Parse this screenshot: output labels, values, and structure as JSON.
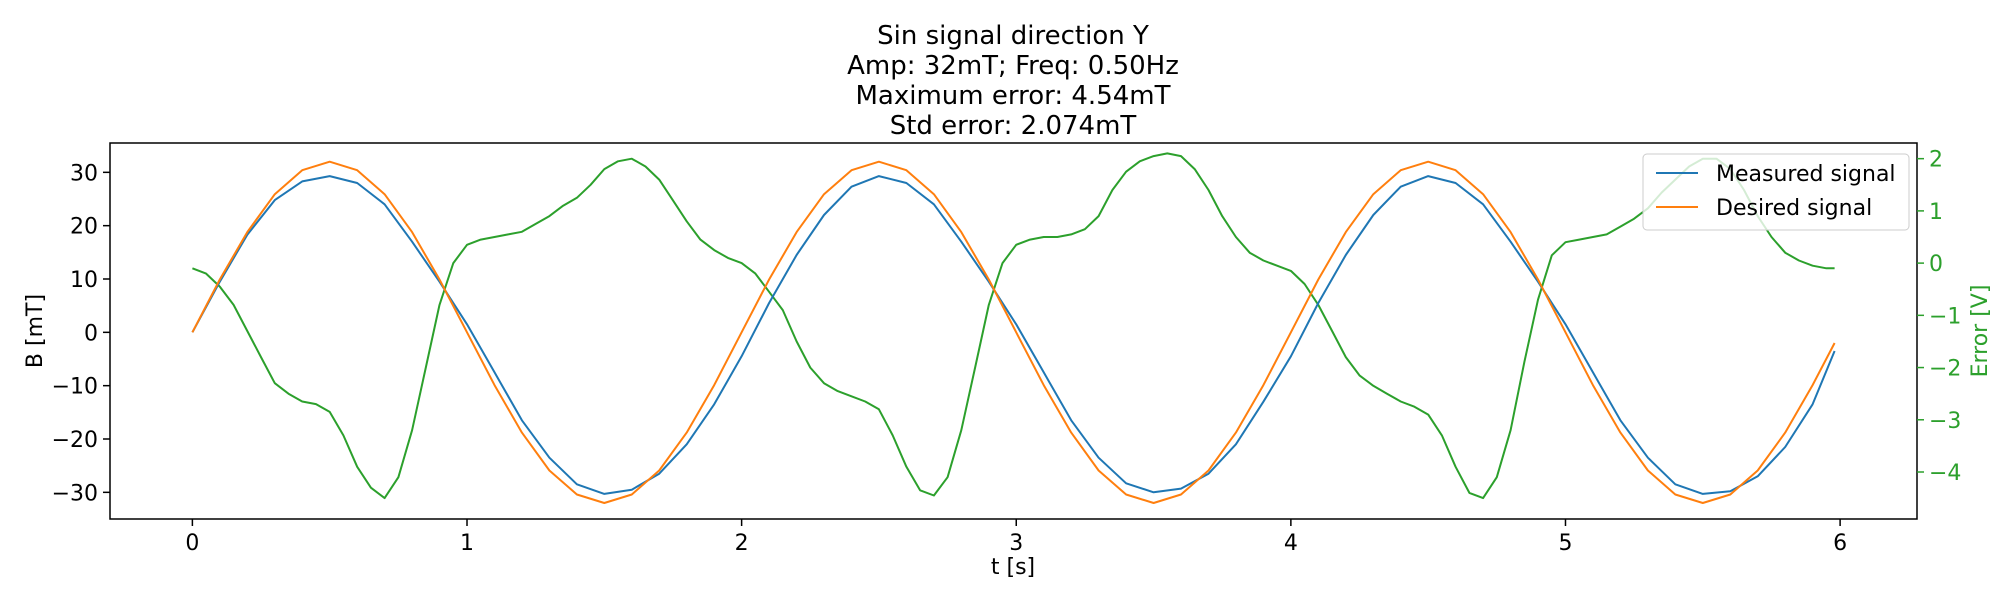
{
  "chart_data": {
    "type": "line",
    "title_lines": [
      "Sin signal direction Y",
      "Amp: 32mT; Freq: 0.50Hz",
      "Maximum error: 4.54mT",
      "Std error: 2.074mT"
    ],
    "xlabel": "t [s]",
    "ylabel": "B [mT]",
    "y2label": "Error [V]",
    "xlim": [
      -0.3,
      6.28
    ],
    "ylim": [
      -35,
      35.5
    ],
    "y2lim": [
      -4.9,
      2.3
    ],
    "xticks": [
      0,
      1,
      2,
      3,
      4,
      5,
      6
    ],
    "xtick_labels": [
      "0",
      "1",
      "2",
      "3",
      "4",
      "5",
      "6"
    ],
    "yticks": [
      30,
      20,
      10,
      0,
      -10,
      -20,
      -30
    ],
    "ytick_labels": [
      "30",
      "20",
      "10",
      "0",
      "−10",
      "−20",
      "−30"
    ],
    "y2ticks": [
      2,
      1,
      0,
      -1,
      -2,
      -3,
      -4
    ],
    "y2tick_labels": [
      "2",
      "1",
      "0",
      "−1",
      "−2",
      "−3",
      "−4"
    ],
    "grid": false,
    "legend_position": "top-right",
    "colors": {
      "measured": "#1f77b4",
      "desired": "#ff7f0e",
      "error": "#2ca02c"
    },
    "series": [
      {
        "name": "Measured signal",
        "axis": "left",
        "color": "#1f77b4",
        "x": [
          0,
          0.1,
          0.2,
          0.3,
          0.4,
          0.5,
          0.6,
          0.7,
          0.8,
          0.9,
          1.0,
          1.1,
          1.2,
          1.3,
          1.4,
          1.5,
          1.6,
          1.7,
          1.8,
          1.9,
          2.0,
          2.1,
          2.2,
          2.3,
          2.4,
          2.5,
          2.6,
          2.7,
          2.8,
          2.9,
          3.0,
          3.1,
          3.2,
          3.3,
          3.4,
          3.5,
          3.6,
          3.7,
          3.8,
          3.9,
          4.0,
          4.1,
          4.2,
          4.3,
          4.4,
          4.5,
          4.6,
          4.7,
          4.8,
          4.9,
          5.0,
          5.1,
          5.2,
          5.3,
          5.4,
          5.5,
          5.6,
          5.7,
          5.8,
          5.9,
          5.98
        ],
        "y": [
          0,
          9.5,
          18.3,
          24.8,
          28.3,
          29.3,
          28.0,
          24.0,
          17.0,
          9.5,
          1.5,
          -7.5,
          -16.5,
          -23.5,
          -28.5,
          -30.3,
          -29.5,
          -26.5,
          -21.0,
          -13.5,
          -4.5,
          5.5,
          14.5,
          22.0,
          27.3,
          29.3,
          28.0,
          24.0,
          17.0,
          9.5,
          1.5,
          -7.5,
          -16.5,
          -23.5,
          -28.3,
          -30.0,
          -29.3,
          -26.5,
          -21.0,
          -13.0,
          -4.5,
          5.5,
          14.5,
          22.0,
          27.3,
          29.3,
          28.0,
          24.0,
          17.0,
          9.5,
          1.5,
          -7.5,
          -16.5,
          -23.5,
          -28.5,
          -30.3,
          -29.8,
          -27.0,
          -21.5,
          -13.5,
          -3.5
        ]
      },
      {
        "name": "Desired signal",
        "axis": "left",
        "color": "#ff7f0e",
        "amplitude": 32,
        "frequency_hz": 0.5,
        "x": [
          0,
          0.1,
          0.2,
          0.3,
          0.4,
          0.5,
          0.6,
          0.7,
          0.8,
          0.9,
          1.0,
          1.1,
          1.2,
          1.3,
          1.4,
          1.5,
          1.6,
          1.7,
          1.8,
          1.9,
          2.0,
          2.1,
          2.2,
          2.3,
          2.4,
          2.5,
          2.6,
          2.7,
          2.8,
          2.9,
          3.0,
          3.1,
          3.2,
          3.3,
          3.4,
          3.5,
          3.6,
          3.7,
          3.8,
          3.9,
          4.0,
          4.1,
          4.2,
          4.3,
          4.4,
          4.5,
          4.6,
          4.7,
          4.8,
          4.9,
          5.0,
          5.1,
          5.2,
          5.3,
          5.4,
          5.5,
          5.6,
          5.7,
          5.8,
          5.9,
          5.98
        ],
        "y": [
          0,
          9.9,
          18.8,
          25.9,
          30.4,
          32.0,
          30.4,
          25.9,
          18.8,
          9.9,
          0,
          -9.9,
          -18.8,
          -25.9,
          -30.4,
          -32.0,
          -30.4,
          -25.9,
          -18.8,
          -9.9,
          0,
          9.9,
          18.8,
          25.9,
          30.4,
          32.0,
          30.4,
          25.9,
          18.8,
          9.9,
          0,
          -9.9,
          -18.8,
          -25.9,
          -30.4,
          -32.0,
          -30.4,
          -25.9,
          -18.8,
          -9.9,
          0,
          9.9,
          18.8,
          25.9,
          30.4,
          32.0,
          30.4,
          25.9,
          18.8,
          9.9,
          0,
          -9.9,
          -18.8,
          -25.9,
          -30.4,
          -32.0,
          -30.4,
          -25.9,
          -18.8,
          -9.9,
          -2.0
        ]
      },
      {
        "axis": "right",
        "color": "#2ca02c",
        "x": [
          0,
          0.05,
          0.1,
          0.15,
          0.2,
          0.25,
          0.3,
          0.35,
          0.4,
          0.45,
          0.5,
          0.55,
          0.6,
          0.65,
          0.7,
          0.75,
          0.8,
          0.85,
          0.9,
          0.95,
          1.0,
          1.05,
          1.1,
          1.15,
          1.2,
          1.25,
          1.3,
          1.35,
          1.4,
          1.45,
          1.5,
          1.55,
          1.6,
          1.65,
          1.7,
          1.75,
          1.8,
          1.85,
          1.9,
          1.95,
          2.0,
          2.05,
          2.1,
          2.15,
          2.2,
          2.25,
          2.3,
          2.35,
          2.4,
          2.45,
          2.5,
          2.55,
          2.6,
          2.65,
          2.7,
          2.75,
          2.8,
          2.85,
          2.9,
          2.95,
          3.0,
          3.05,
          3.1,
          3.15,
          3.2,
          3.25,
          3.3,
          3.35,
          3.4,
          3.45,
          3.5,
          3.55,
          3.6,
          3.65,
          3.7,
          3.75,
          3.8,
          3.85,
          3.9,
          3.95,
          4.0,
          4.05,
          4.1,
          4.15,
          4.2,
          4.25,
          4.3,
          4.35,
          4.4,
          4.45,
          4.5,
          4.55,
          4.6,
          4.65,
          4.7,
          4.75,
          4.8,
          4.85,
          4.9,
          4.95,
          5.0,
          5.05,
          5.1,
          5.15,
          5.2,
          5.25,
          5.3,
          5.35,
          5.4,
          5.45,
          5.5,
          5.55,
          5.6,
          5.65,
          5.7,
          5.75,
          5.8,
          5.85,
          5.9,
          5.95,
          5.98
        ],
        "y": [
          -0.1,
          -0.2,
          -0.45,
          -0.8,
          -1.3,
          -1.8,
          -2.3,
          -2.5,
          -2.65,
          -2.7,
          -2.85,
          -3.3,
          -3.9,
          -4.3,
          -4.5,
          -4.1,
          -3.2,
          -2.0,
          -0.8,
          0.0,
          0.35,
          0.45,
          0.5,
          0.55,
          0.6,
          0.75,
          0.9,
          1.1,
          1.25,
          1.5,
          1.8,
          1.95,
          2.0,
          1.85,
          1.6,
          1.2,
          0.8,
          0.45,
          0.25,
          0.1,
          0.0,
          -0.2,
          -0.55,
          -0.9,
          -1.5,
          -2.0,
          -2.3,
          -2.45,
          -2.55,
          -2.65,
          -2.8,
          -3.3,
          -3.9,
          -4.35,
          -4.45,
          -4.1,
          -3.2,
          -2.0,
          -0.8,
          0.0,
          0.35,
          0.45,
          0.5,
          0.5,
          0.55,
          0.65,
          0.9,
          1.4,
          1.75,
          1.95,
          2.05,
          2.1,
          2.05,
          1.8,
          1.4,
          0.9,
          0.5,
          0.2,
          0.05,
          -0.05,
          -0.15,
          -0.4,
          -0.8,
          -1.3,
          -1.8,
          -2.15,
          -2.35,
          -2.5,
          -2.65,
          -2.75,
          -2.9,
          -3.3,
          -3.9,
          -4.4,
          -4.5,
          -4.1,
          -3.2,
          -1.9,
          -0.7,
          0.15,
          0.4,
          0.45,
          0.5,
          0.55,
          0.7,
          0.85,
          1.05,
          1.35,
          1.6,
          1.85,
          2.0,
          2.0,
          1.8,
          1.4,
          0.9,
          0.5,
          0.2,
          0.05,
          -0.05,
          -0.1,
          -0.1
        ]
      }
    ]
  }
}
